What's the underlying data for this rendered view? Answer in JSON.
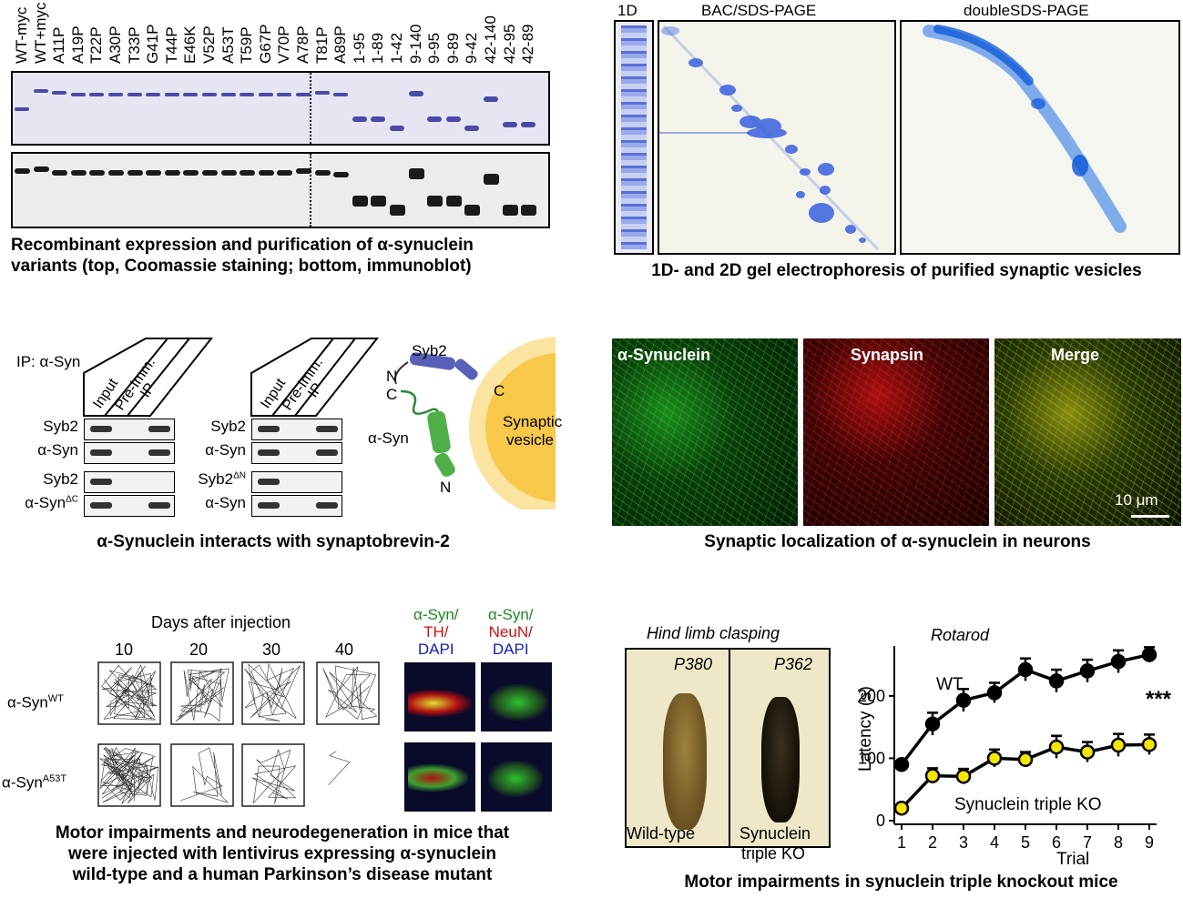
{
  "panelA": {
    "lanes": [
      "WT-myc",
      "WT+myc",
      "A11P",
      "A19P",
      "T22P",
      "A30P",
      "T33P",
      "G41P",
      "T44P",
      "E46K",
      "V52P",
      "A53T",
      "T59P",
      "G67P",
      "V70P",
      "A78P",
      "T81P",
      "A89P",
      "1-95",
      "1-89",
      "1-42",
      "9-140",
      "9-95",
      "9-89",
      "9-42",
      "42-140",
      "42-95",
      "42-89"
    ],
    "caption_line1": "Recombinant expression and purification of α-synuclein",
    "caption_line2": "variants (top, Coomassie staining; bottom, immunoblot)"
  },
  "panelB": {
    "label_1d": "1D",
    "label_bac": "BAC/SDS-PAGE",
    "label_double": "doubleSDS-PAGE",
    "caption": "1D- and 2D gel electrophoresis of purified synaptic vesicles"
  },
  "panelC": {
    "ip_label": "IP: α-Syn",
    "lane_headers": [
      "Input",
      "Pre-Imm.",
      "IP"
    ],
    "left_rows": [
      "Syb2",
      "α-Syn",
      "Syb2",
      "α-SynΔC"
    ],
    "right_rows": [
      "Syb2",
      "α-Syn",
      "Syb2ΔN",
      "α-Syn"
    ],
    "diagram": {
      "syb2": "Syb2",
      "asyn": "α-Syn",
      "n1": "N",
      "c1": "C",
      "c2": "C",
      "n2": "N",
      "vesicle_line1": "Synaptic",
      "vesicle_line2": "vesicle"
    },
    "caption": "α-Synuclein interacts with synaptobrevin-2"
  },
  "panelD": {
    "labels": [
      "α-Synuclein",
      "Synapsin",
      "Merge"
    ],
    "scalebar": "10 μm",
    "caption": "Synaptic localization of α-synuclein in neurons"
  },
  "panelE": {
    "title": "Days after injection",
    "days": [
      "10",
      "20",
      "30",
      "40"
    ],
    "rows": [
      "α-SynWT",
      "α-SynA53T"
    ],
    "stain1": {
      "a": "α-Syn/",
      "b": "TH/",
      "c": "DAPI"
    },
    "stain2": {
      "a": "α-Syn/",
      "b": "NeuN/",
      "c": "DAPI"
    },
    "caption_line1": "Motor impairments and neurodegeneration in mice that",
    "caption_line2": "were injected with lentivirus expressing α-synuclein",
    "caption_line3": "wild-type and a human Parkinson’s disease mutant"
  },
  "panelF": {
    "clasp_title": "Hind limb clasping",
    "p1": "P380",
    "p2": "P362",
    "wt_label": "Wild-type",
    "ko_label_1": "Synuclein",
    "ko_label_2": "triple KO",
    "rotarod_title": "Rotarod",
    "caption": "Motor impairments in synuclein triple knockout mice"
  },
  "chart_data": {
    "type": "line",
    "title": "Rotarod",
    "xlabel": "Trial",
    "ylabel": "Latency (s)",
    "x": [
      1,
      2,
      3,
      4,
      5,
      6,
      7,
      8,
      9
    ],
    "xticks": [
      "1",
      "2",
      "3",
      "4",
      "5",
      "6",
      "7",
      "8",
      "9"
    ],
    "yticks": [
      "0",
      "100",
      "200"
    ],
    "ylim": [
      0,
      280
    ],
    "significance": "***",
    "series": [
      {
        "name": "WT",
        "color": "#000000",
        "values": [
          90,
          155,
          193,
          205,
          242,
          224,
          240,
          255,
          266
        ],
        "err": [
          8,
          18,
          18,
          16,
          18,
          18,
          18,
          18,
          12
        ]
      },
      {
        "name": "Synuclein triple KO",
        "color": "#f5e600",
        "values": [
          20,
          72,
          71,
          100,
          98,
          118,
          110,
          121,
          122
        ],
        "err": [
          6,
          12,
          12,
          14,
          12,
          18,
          16,
          18,
          16
        ]
      }
    ]
  }
}
